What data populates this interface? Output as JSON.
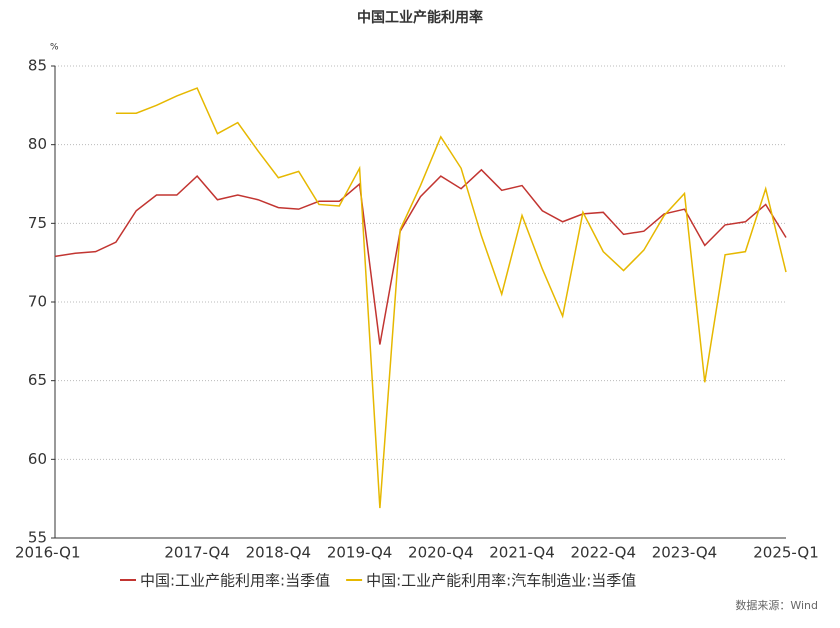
{
  "chart_data": {
    "type": "line",
    "title": "中国工业产能利用率",
    "y_unit": "%",
    "source": "数据来源：Wind",
    "categories": [
      "2016-Q1",
      null,
      null,
      null,
      null,
      null,
      null,
      "2017-Q4",
      null,
      null,
      null,
      "2018-Q4",
      null,
      null,
      null,
      "2019-Q4",
      null,
      null,
      null,
      "2020-Q4",
      null,
      null,
      null,
      "2021-Q4",
      null,
      null,
      null,
      "2022-Q4",
      null,
      null,
      null,
      "2023-Q4",
      null,
      null,
      null,
      null,
      "2025-Q1"
    ],
    "series": [
      {
        "name": "中国:工业产能利用率:当季值",
        "color": "#c23531",
        "values": [
          72.9,
          73.1,
          73.2,
          73.8,
          75.8,
          76.8,
          76.8,
          78.0,
          76.5,
          76.8,
          76.5,
          76.0,
          75.9,
          76.4,
          76.4,
          77.5,
          67.3,
          74.5,
          76.7,
          78.0,
          77.2,
          78.4,
          77.1,
          77.4,
          75.8,
          75.1,
          75.6,
          75.7,
          74.3,
          74.5,
          75.6,
          75.9,
          73.6,
          74.9,
          75.1,
          76.2,
          74.1
        ]
      },
      {
        "name": "中国:工业产能利用率:汽车制造业:当季值",
        "color": "#e6b800",
        "values": [
          null,
          null,
          null,
          82.0,
          82.0,
          82.5,
          83.1,
          83.6,
          80.7,
          81.4,
          79.6,
          77.9,
          78.3,
          76.2,
          76.1,
          78.5,
          56.9,
          74.6,
          77.4,
          80.5,
          78.5,
          74.2,
          70.5,
          75.5,
          72.1,
          69.1,
          75.7,
          73.2,
          72.0,
          73.3,
          75.5,
          76.9,
          64.9,
          73.0,
          73.2,
          77.2,
          71.9
        ]
      }
    ],
    "ylim": [
      55,
      85
    ],
    "yticks": [
      55,
      60,
      65,
      70,
      75,
      80,
      85
    ],
    "grid": true
  }
}
